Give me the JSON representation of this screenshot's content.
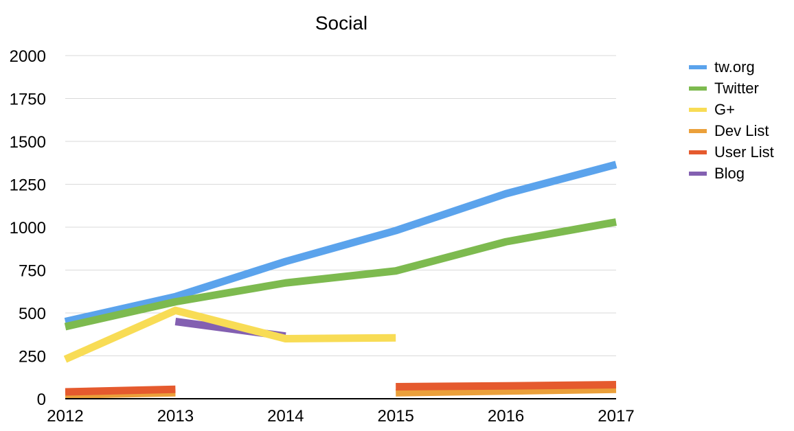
{
  "chart_data": {
    "type": "line",
    "title": "Social",
    "xlabel": "",
    "ylabel": "",
    "categories": [
      "2012",
      "2013",
      "2014",
      "2015",
      "2016",
      "2017"
    ],
    "y_ticks": [
      "0",
      "250",
      "500",
      "750",
      "1000",
      "1250",
      "1500",
      "1750",
      "2000"
    ],
    "ylim": [
      0,
      2000
    ],
    "grid": true,
    "legend_position": "right",
    "series": [
      {
        "name": "tw.org",
        "color": "#5ba3ec",
        "values": [
          450,
          595,
          800,
          980,
          1195,
          1365
        ]
      },
      {
        "name": "Twitter",
        "color": "#7dba4f",
        "values": [
          420,
          565,
          675,
          745,
          915,
          1030
        ]
      },
      {
        "name": "G+",
        "color": "#f8dc55",
        "values": [
          230,
          515,
          350,
          355,
          null,
          null
        ]
      },
      {
        "name": "Dev List",
        "color": "#eba03a",
        "values": [
          22,
          35,
          null,
          35,
          45,
          55
        ]
      },
      {
        "name": "User List",
        "color": "#e55a2e",
        "values": [
          40,
          55,
          null,
          70,
          75,
          82
        ]
      },
      {
        "name": "Blog",
        "color": "#8360b1",
        "values": [
          null,
          450,
          365,
          null,
          null,
          null
        ]
      }
    ],
    "series_draw_order": [
      "Blog",
      "tw.org",
      "Twitter",
      "G+",
      "Dev List",
      "User List"
    ]
  }
}
